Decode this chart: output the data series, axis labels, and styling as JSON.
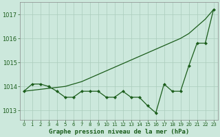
{
  "title": "Graphe pression niveau de la mer (hPa)",
  "background_color": "#cce8dc",
  "grid_color": "#aaccbb",
  "line_color": "#1a5c1a",
  "xlim": [
    -0.5,
    23.5
  ],
  "ylim": [
    1012.6,
    1017.5
  ],
  "yticks": [
    1013,
    1014,
    1015,
    1016,
    1017
  ],
  "xticks": [
    0,
    1,
    2,
    3,
    4,
    5,
    6,
    7,
    8,
    9,
    10,
    11,
    12,
    13,
    14,
    15,
    16,
    17,
    18,
    19,
    20,
    21,
    22,
    23
  ],
  "hours": [
    0,
    1,
    2,
    3,
    4,
    5,
    6,
    7,
    8,
    9,
    10,
    11,
    12,
    13,
    14,
    15,
    16,
    17,
    18,
    19,
    20,
    21,
    22,
    23
  ],
  "line_smooth": [
    1013.8,
    1013.84,
    1013.88,
    1013.92,
    1013.96,
    1014.0,
    1014.1,
    1014.2,
    1014.35,
    1014.5,
    1014.65,
    1014.8,
    1014.95,
    1015.1,
    1015.25,
    1015.4,
    1015.55,
    1015.7,
    1015.85,
    1016.0,
    1016.2,
    1016.5,
    1016.8,
    1017.2
  ],
  "line_jagged": [
    1013.8,
    1014.1,
    1014.1,
    1014.0,
    1013.8,
    1013.55,
    1013.55,
    1013.8,
    1013.8,
    1013.8,
    1013.55,
    1013.55,
    1013.8,
    1013.55,
    1013.55,
    1013.2,
    1012.9,
    1014.1,
    1013.8,
    1013.8,
    1014.85,
    1015.8,
    1015.8,
    1017.2
  ],
  "ytick_fontsize": 6,
  "xtick_fontsize": 5,
  "xlabel_fontsize": 6.5
}
